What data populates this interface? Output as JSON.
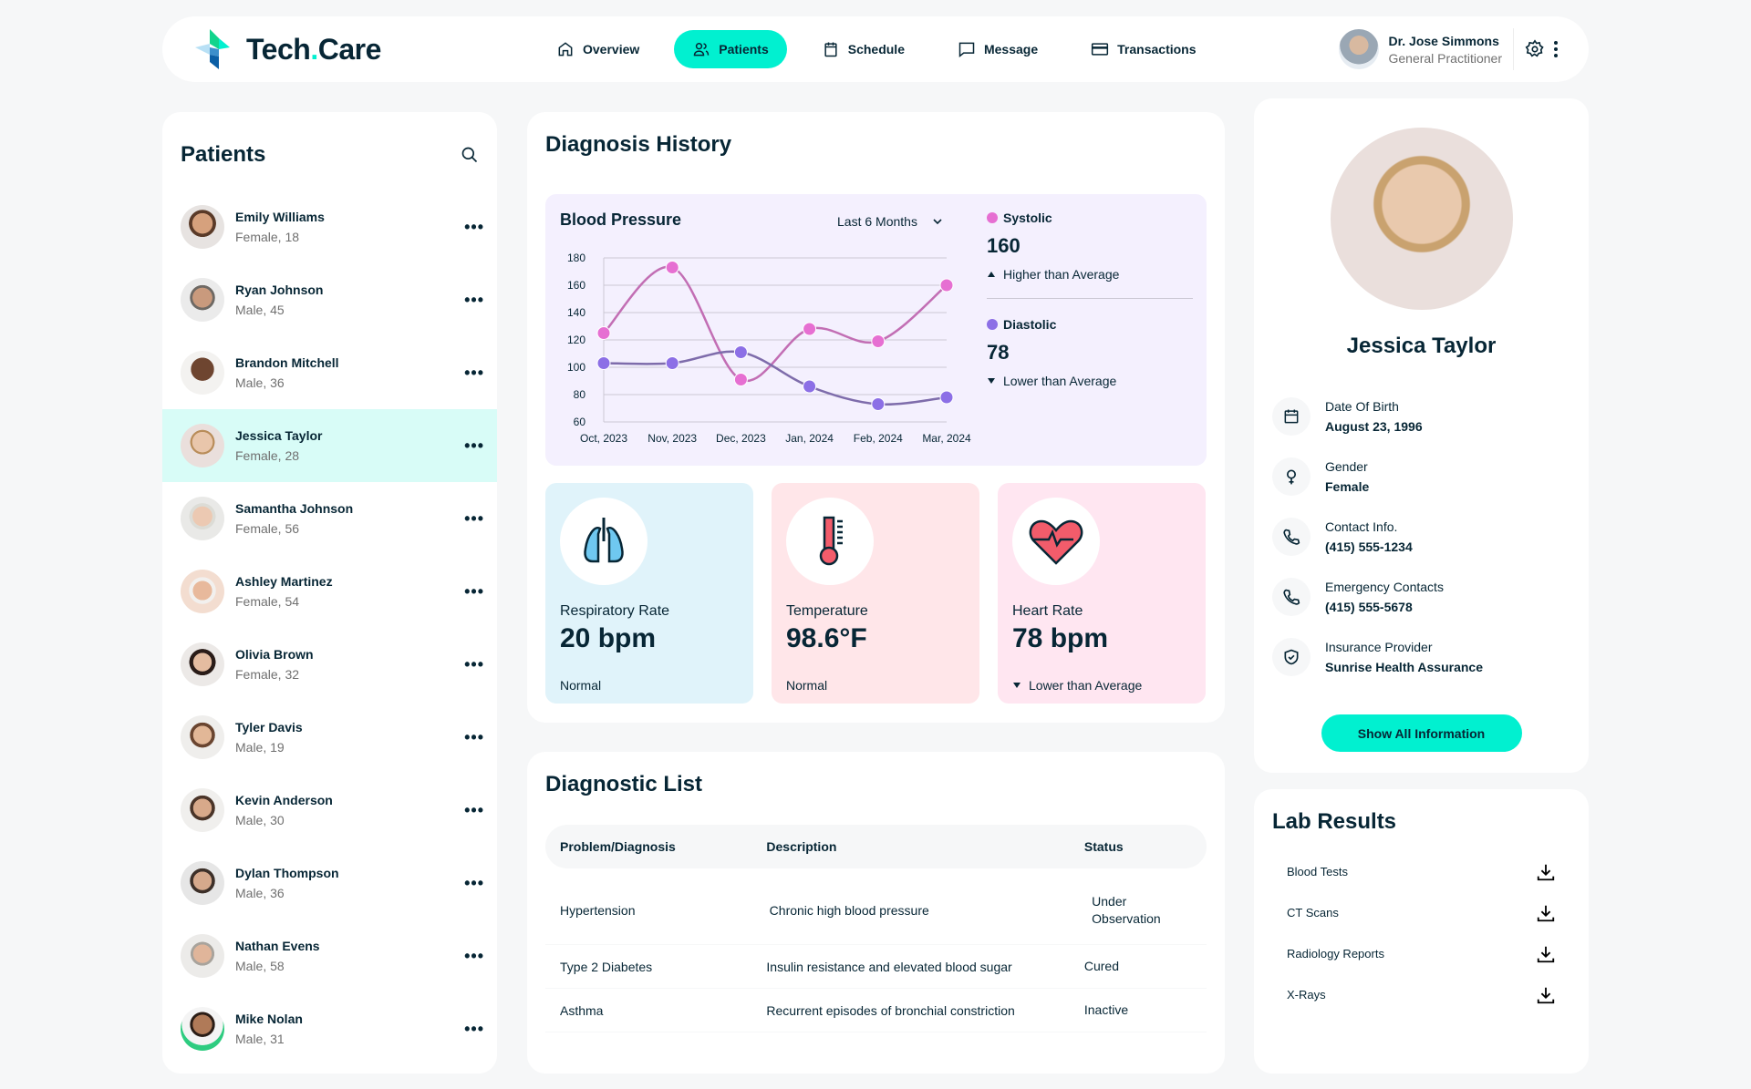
{
  "header": {
    "logo_main": "Tech",
    "logo_dot": ".",
    "logo_tail": "Care",
    "nav": [
      {
        "label": "Overview",
        "icon": "home-icon",
        "active": false
      },
      {
        "label": "Patients",
        "icon": "users-icon",
        "active": true
      },
      {
        "label": "Schedule",
        "icon": "calendar-icon",
        "active": false
      },
      {
        "label": "Message",
        "icon": "chat-icon",
        "active": false
      },
      {
        "label": "Transactions",
        "icon": "credit-card-icon",
        "active": false
      }
    ],
    "user": {
      "name": "Dr. Jose Simmons",
      "role": "General Practitioner"
    }
  },
  "patients": {
    "title": "Patients",
    "list": [
      {
        "name": "Emily Williams",
        "info": "Female, 18"
      },
      {
        "name": "Ryan Johnson",
        "info": "Male, 45"
      },
      {
        "name": "Brandon Mitchell",
        "info": "Male, 36"
      },
      {
        "name": "Jessica Taylor",
        "info": "Female, 28",
        "active": true
      },
      {
        "name": "Samantha Johnson",
        "info": "Female, 56"
      },
      {
        "name": "Ashley Martinez",
        "info": "Female, 54"
      },
      {
        "name": "Olivia Brown",
        "info": "Female, 32"
      },
      {
        "name": "Tyler Davis",
        "info": "Male, 19"
      },
      {
        "name": "Kevin Anderson",
        "info": "Male, 30"
      },
      {
        "name": "Dylan Thompson",
        "info": "Male, 36"
      },
      {
        "name": "Nathan Evens",
        "info": "Male, 58"
      },
      {
        "name": "Mike Nolan",
        "info": "Male, 31"
      }
    ],
    "more_label": "•••"
  },
  "diagnosis": {
    "title": "Diagnosis History",
    "bp_title": "Blood Pressure",
    "range": "Last 6 Months",
    "systolic": {
      "label": "Systolic",
      "value": "160",
      "status": "Higher than Average",
      "color": "#E66FD2"
    },
    "diastolic": {
      "label": "Diastolic",
      "value": "78",
      "status": "Lower than Average",
      "color": "#8C6FE6"
    },
    "vitals": [
      {
        "label": "Respiratory Rate",
        "value": "20 bpm",
        "status": "Normal",
        "bg": "#E0F3FA"
      },
      {
        "label": "Temperature",
        "value": "98.6°F",
        "status": "Normal",
        "bg": "#FFE6E9"
      },
      {
        "label": "Heart Rate",
        "value": "78 bpm",
        "status": "Lower than Average",
        "bg": "#FFE6F1"
      }
    ]
  },
  "chart_data": {
    "type": "line",
    "title": "Blood Pressure",
    "categories": [
      "Oct, 2023",
      "Nov, 2023",
      "Dec, 2023",
      "Jan, 2024",
      "Feb, 2024",
      "Mar, 2024"
    ],
    "series": [
      {
        "name": "Systolic",
        "values": [
          125,
          173,
          91,
          128,
          119,
          160
        ],
        "color": "#E66FD2"
      },
      {
        "name": "Diastolic",
        "values": [
          103,
          103,
          111,
          86,
          73,
          78
        ],
        "color": "#8C6FE6"
      }
    ],
    "ylim": [
      60,
      180
    ],
    "yticks": [
      60,
      80,
      100,
      120,
      140,
      160,
      180
    ],
    "grid": true,
    "legend_position": "right"
  },
  "diagnostic_list": {
    "title": "Diagnostic List",
    "headers": [
      "Problem/Diagnosis",
      "Description",
      "Status"
    ],
    "rows": [
      [
        "Hypertension",
        "Chronic high blood pressure",
        "Under Observation"
      ],
      [
        "Type 2 Diabetes",
        "Insulin resistance and elevated blood sugar",
        "Cured"
      ],
      [
        "Asthma",
        "Recurrent episodes of bronchial constriction",
        "Inactive"
      ]
    ]
  },
  "profile": {
    "name": "Jessica Taylor",
    "fields": [
      {
        "label": "Date Of Birth",
        "value": "August 23, 1996",
        "icon": "calendar-icon"
      },
      {
        "label": "Gender",
        "value": "Female",
        "icon": "female-icon"
      },
      {
        "label": "Contact Info.",
        "value": "(415) 555-1234",
        "icon": "phone-icon"
      },
      {
        "label": "Emergency Contacts",
        "value": "(415) 555-5678",
        "icon": "phone-icon"
      },
      {
        "label": "Insurance Provider",
        "value": "Sunrise Health Assurance",
        "icon": "shield-check-icon"
      }
    ],
    "button": "Show All Information"
  },
  "lab": {
    "title": "Lab Results",
    "items": [
      "Blood Tests",
      "CT Scans",
      "Radiology Reports",
      "X-Rays"
    ]
  }
}
